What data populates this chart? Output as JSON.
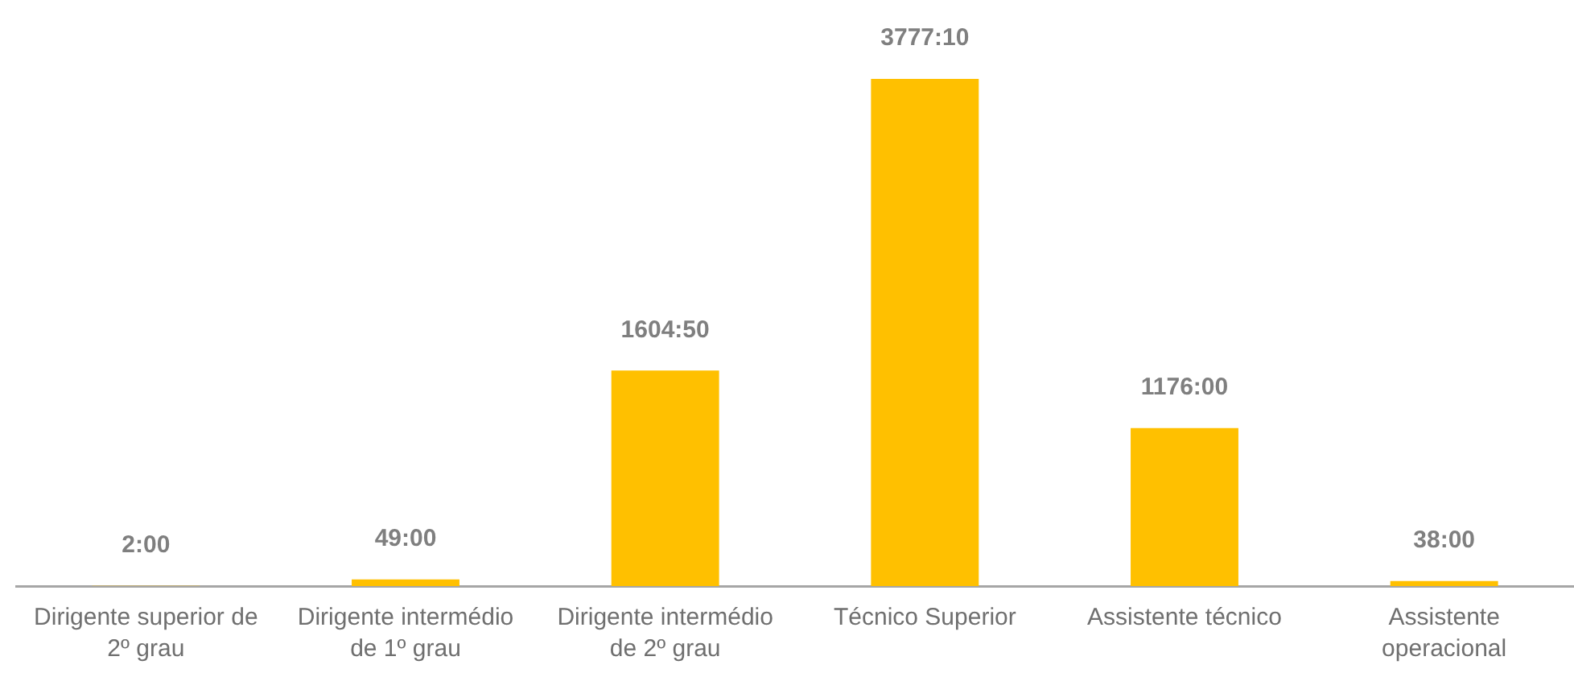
{
  "chart_data": {
    "type": "bar",
    "categories": [
      "Dirigente superior de 2º grau",
      "Dirigente intermédio de 1º grau",
      "Dirigente intermédio de 2º grau",
      "Técnico Superior",
      "Assistente técnico",
      "Assistente operacional"
    ],
    "values": [
      2,
      49,
      1604.83,
      3777.17,
      1176,
      38
    ],
    "value_labels": [
      "2:00",
      "49:00",
      "1604:50",
      "3777:10",
      "1176:00",
      "38:00"
    ],
    "color": "#ffc000",
    "tick_labels": "x"
  }
}
